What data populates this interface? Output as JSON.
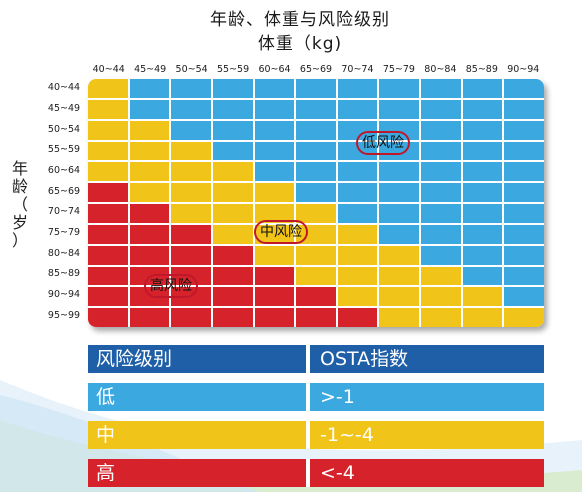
{
  "title_line1": "年龄、体重与风险级别",
  "title_line2": "体重（kg)",
  "y_axis_title": [
    "年",
    "龄",
    "（",
    "岁",
    "）"
  ],
  "colors": {
    "low": "#3ba8e0",
    "mid": "#f0c419",
    "high": "#d6232b",
    "header": "#1e5fa8"
  },
  "chart_data": {
    "type": "heatmap",
    "title": "年龄、体重与风险级别",
    "xlabel": "体重（kg)",
    "ylabel": "年龄（岁）",
    "x_categories": [
      "40~44",
      "45~49",
      "50~54",
      "55~59",
      "60~64",
      "65~69",
      "70~74",
      "75~79",
      "80~84",
      "85~89",
      "90~94"
    ],
    "y_categories": [
      "40~44",
      "45~49",
      "50~54",
      "55~59",
      "60~64",
      "65~69",
      "70~74",
      "75~79",
      "80~84",
      "85~89",
      "90~94",
      "95~99"
    ],
    "values": [
      [
        "M",
        "L",
        "L",
        "L",
        "L",
        "L",
        "L",
        "L",
        "L",
        "L",
        "L"
      ],
      [
        "M",
        "L",
        "L",
        "L",
        "L",
        "L",
        "L",
        "L",
        "L",
        "L",
        "L"
      ],
      [
        "M",
        "M",
        "L",
        "L",
        "L",
        "L",
        "L",
        "L",
        "L",
        "L",
        "L"
      ],
      [
        "M",
        "M",
        "M",
        "L",
        "L",
        "L",
        "L",
        "L",
        "L",
        "L",
        "L"
      ],
      [
        "M",
        "M",
        "M",
        "M",
        "L",
        "L",
        "L",
        "L",
        "L",
        "L",
        "L"
      ],
      [
        "H",
        "M",
        "M",
        "M",
        "M",
        "L",
        "L",
        "L",
        "L",
        "L",
        "L"
      ],
      [
        "H",
        "H",
        "M",
        "M",
        "M",
        "M",
        "L",
        "L",
        "L",
        "L",
        "L"
      ],
      [
        "H",
        "H",
        "H",
        "M",
        "M",
        "M",
        "M",
        "L",
        "L",
        "L",
        "L"
      ],
      [
        "H",
        "H",
        "H",
        "H",
        "M",
        "M",
        "M",
        "M",
        "L",
        "L",
        "L"
      ],
      [
        "H",
        "H",
        "H",
        "H",
        "H",
        "M",
        "M",
        "M",
        "M",
        "L",
        "L"
      ],
      [
        "H",
        "H",
        "H",
        "H",
        "H",
        "H",
        "M",
        "M",
        "M",
        "M",
        "L"
      ],
      [
        "H",
        "H",
        "H",
        "H",
        "H",
        "H",
        "H",
        "M",
        "M",
        "M",
        "M"
      ]
    ],
    "legend_labels": {
      "L": "低风险",
      "M": "中风险",
      "H": "高风险"
    }
  },
  "table": {
    "header": [
      "风险级别",
      "OSTA指数"
    ],
    "rows": [
      {
        "level": "低",
        "osta": ">-1"
      },
      {
        "level": "中",
        "osta": "-1~-4"
      },
      {
        "level": "高",
        "osta": "<-4"
      }
    ]
  }
}
